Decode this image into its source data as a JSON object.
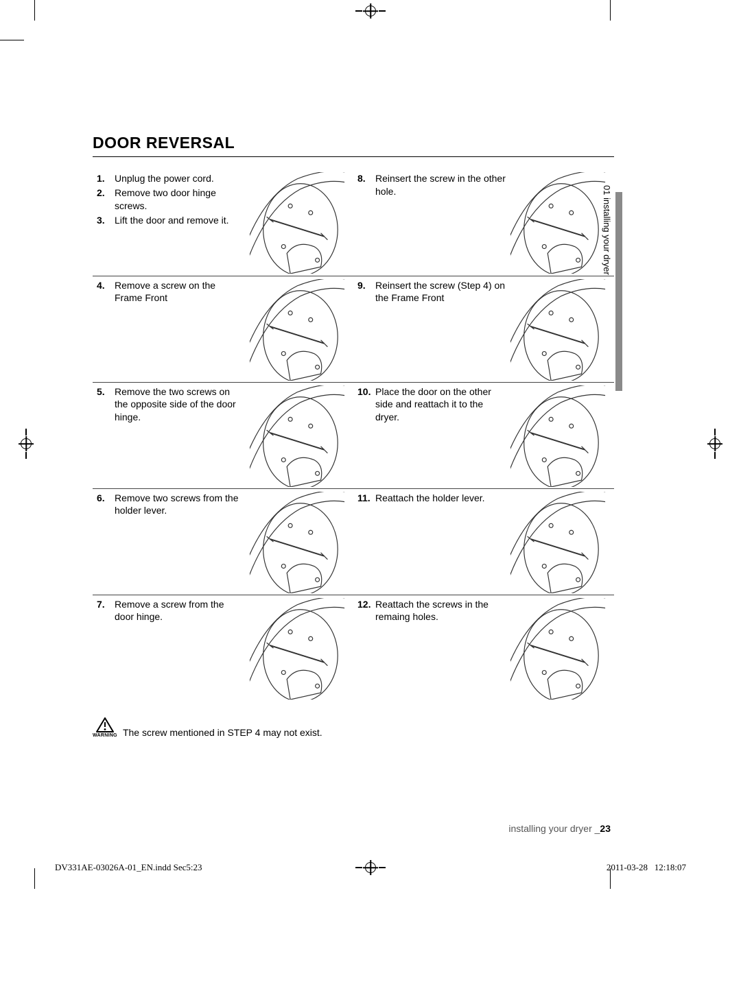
{
  "title": "DOOR REVERSAL",
  "side_tab": "01 installing your dryer",
  "left_rows": [
    {
      "items": [
        {
          "n": "1.",
          "t": "Unplug the power cord."
        },
        {
          "n": "2.",
          "t": "Remove two door hinge screws."
        },
        {
          "n": "3.",
          "t": "Lift the door and remove it."
        }
      ]
    },
    {
      "items": [
        {
          "n": "4.",
          "t": "Remove a screw on the Frame Front"
        }
      ]
    },
    {
      "items": [
        {
          "n": "5.",
          "t": "Remove the two screws on the opposite side of the door hinge."
        }
      ]
    },
    {
      "items": [
        {
          "n": "6.",
          "t": "Remove two screws from the holder lever."
        }
      ]
    },
    {
      "items": [
        {
          "n": "7.",
          "t": "Remove a screw from the door hinge."
        }
      ]
    }
  ],
  "right_rows": [
    {
      "items": [
        {
          "n": "8.",
          "t": "Reinsert the screw in the other hole."
        }
      ]
    },
    {
      "items": [
        {
          "n": "9.",
          "t": "Reinsert the screw (Step 4) on the Frame Front"
        }
      ]
    },
    {
      "items": [
        {
          "n": "10.",
          "t": "Place the door on the other side and reattach it to the dryer."
        }
      ]
    },
    {
      "items": [
        {
          "n": "11.",
          "t": "Reattach the holder lever."
        }
      ]
    },
    {
      "items": [
        {
          "n": "12.",
          "t": "Reattach the screws in the remaing holes."
        }
      ]
    }
  ],
  "warning_label": "WARNING",
  "warning_text": "The screw mentioned in STEP 4 may not exist.",
  "footer_section": "installing your dryer _",
  "footer_page": "23",
  "bleed_file": "DV331AE-03026A-01_EN.indd   Sec5:23",
  "bleed_date": "2011-03-28",
  "bleed_time": "12:18:07",
  "colors": {
    "rule": "#000000",
    "side_tab": "#8a8a8a",
    "text_grey": "#555555"
  }
}
